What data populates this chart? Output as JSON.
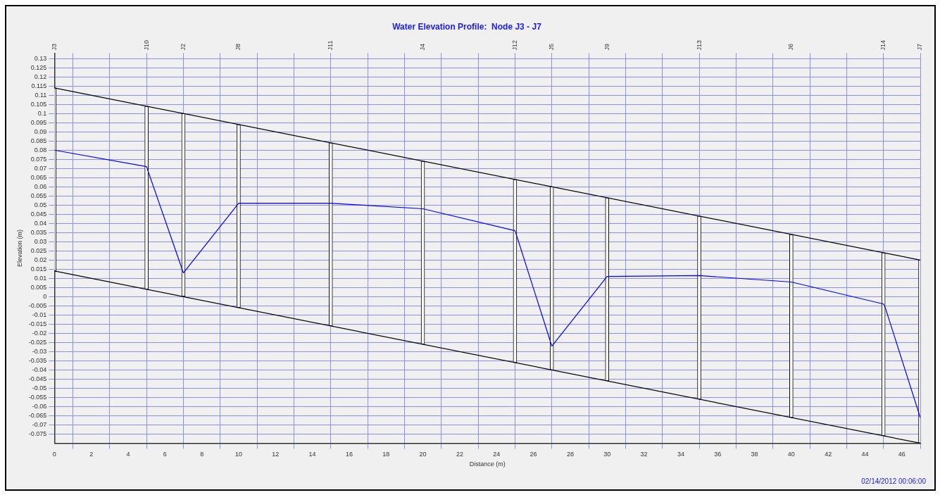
{
  "chart_data": {
    "type": "line",
    "title": "Water Elevation Profile:  Node J3 - J7",
    "xlabel": "Distance (m)",
    "ylabel": "Elevation (m)",
    "xlim": [
      0,
      47
    ],
    "xticks": [
      0,
      2,
      4,
      6,
      8,
      10,
      12,
      14,
      16,
      18,
      20,
      22,
      24,
      26,
      28,
      30,
      32,
      34,
      36,
      38,
      40,
      42,
      44,
      46
    ],
    "ylim": [
      -0.08,
      0.133
    ],
    "yticks": [
      -0.075,
      -0.07,
      -0.065,
      -0.06,
      -0.055,
      -0.05,
      -0.045,
      -0.04,
      -0.035,
      -0.03,
      -0.025,
      -0.02,
      -0.015,
      -0.01,
      -0.005,
      0,
      0.005,
      0.01,
      0.015,
      0.02,
      0.025,
      0.03,
      0.035,
      0.04,
      0.045,
      0.05,
      0.055,
      0.06,
      0.065,
      0.07,
      0.075,
      0.08,
      0.085,
      0.09,
      0.095,
      0.1,
      0.105,
      0.11,
      0.115,
      0.12,
      0.125,
      0.13
    ],
    "grid": true,
    "legend": false,
    "marker": "none",
    "line_style": "solid",
    "series": [
      {
        "type": "bar",
        "color": "#000000",
        "x": [
          0,
          5,
          7,
          10,
          15,
          20,
          25,
          27,
          30,
          35,
          40,
          45,
          47
        ],
        "base": [
          0.014,
          0.004,
          0,
          -0.006,
          -0.016,
          -0.026,
          -0.036,
          -0.04,
          -0.046,
          -0.056,
          -0.066,
          -0.076,
          -0.08
        ],
        "values": [
          0.1,
          0.1,
          0.1,
          0.1,
          0.1,
          0.1,
          0.1,
          0.1,
          0.1,
          0.1,
          0.1,
          0.1,
          0.1
        ]
      },
      {
        "type": "line",
        "color": "#000000",
        "x": [
          0,
          47
        ],
        "values": [
          0.114,
          0.02
        ]
      },
      {
        "type": "line",
        "color": "#000000",
        "x": [
          0,
          47
        ],
        "values": [
          0.014,
          -0.08
        ]
      },
      {
        "color": "#0000ff",
        "x": [
          0,
          5,
          5.1,
          7,
          10,
          15,
          20,
          25,
          25.1,
          27,
          30,
          35,
          40,
          45,
          45.1,
          47
        ],
        "values": [
          0.08,
          0.071,
          0.068,
          0.013,
          0.051,
          0.051,
          0.048,
          0.036,
          0.033,
          -0.027,
          0.011,
          0.0115,
          0.008,
          -0.004,
          -0.006,
          -0.066
        ]
      }
    ],
    "annotations": [
      "J3",
      "J10",
      "J2",
      "J8",
      "J11",
      "J4",
      "J12",
      "J5",
      "J9",
      "J13",
      "J6",
      "J14",
      "J7",
      "02/14/2012 00:06:00"
    ]
  }
}
